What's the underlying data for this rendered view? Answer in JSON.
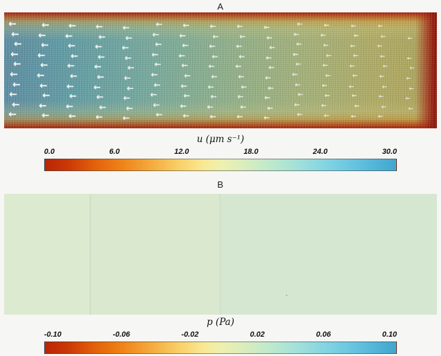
{
  "panel_a": {
    "label": "A",
    "colorbar": {
      "title": "u (μm s⁻¹)",
      "ticks": [
        "0.0",
        "6.0",
        "12.0",
        "18.0",
        "24.0",
        "30.0"
      ]
    }
  },
  "panel_b": {
    "label": "B",
    "colorbar": {
      "title": "p (Pa)",
      "ticks": [
        "-0.10",
        "-0.06",
        "-0.02",
        "0.02",
        "0.06",
        "0.10"
      ]
    }
  },
  "chart_data": [
    {
      "type": "heatmap",
      "title": "A",
      "description": "Velocity magnitude field of channel flow with overlaid white flow vectors pointing left; fastest flow (teal-blue, ~24-30 um/s) in the channel core on the left half, slowing (green-yellow) toward the right, near-zero velocity (red) along top wall, bottom wall and right end",
      "colorbar_label": "u (μm s⁻¹)",
      "colorbar_ticks": [
        0.0,
        6.0,
        12.0,
        18.0,
        24.0,
        30.0
      ],
      "value_range": [
        0.0,
        30.0
      ],
      "colormap_stops": [
        "#b92504",
        "#ef8318",
        "#f9e892",
        "#d9edbe",
        "#83d4e2",
        "#42a6cc"
      ],
      "legend_position": "below",
      "vector_direction": "left"
    },
    {
      "type": "heatmap",
      "title": "B",
      "description": "Pressure field, nearly uniform pale green corresponding to p ≈ 0 Pa across the whole domain with very faint vertical banding",
      "colorbar_label": "p (Pa)",
      "colorbar_ticks": [
        -0.1,
        -0.06,
        -0.02,
        0.02,
        0.06,
        0.1
      ],
      "value_range": [
        -0.1,
        0.1
      ],
      "colormap_stops": [
        "#b92504",
        "#ef8318",
        "#f9e892",
        "#d9edbe",
        "#83d4e2",
        "#42a6cc"
      ],
      "legend_position": "below"
    }
  ]
}
